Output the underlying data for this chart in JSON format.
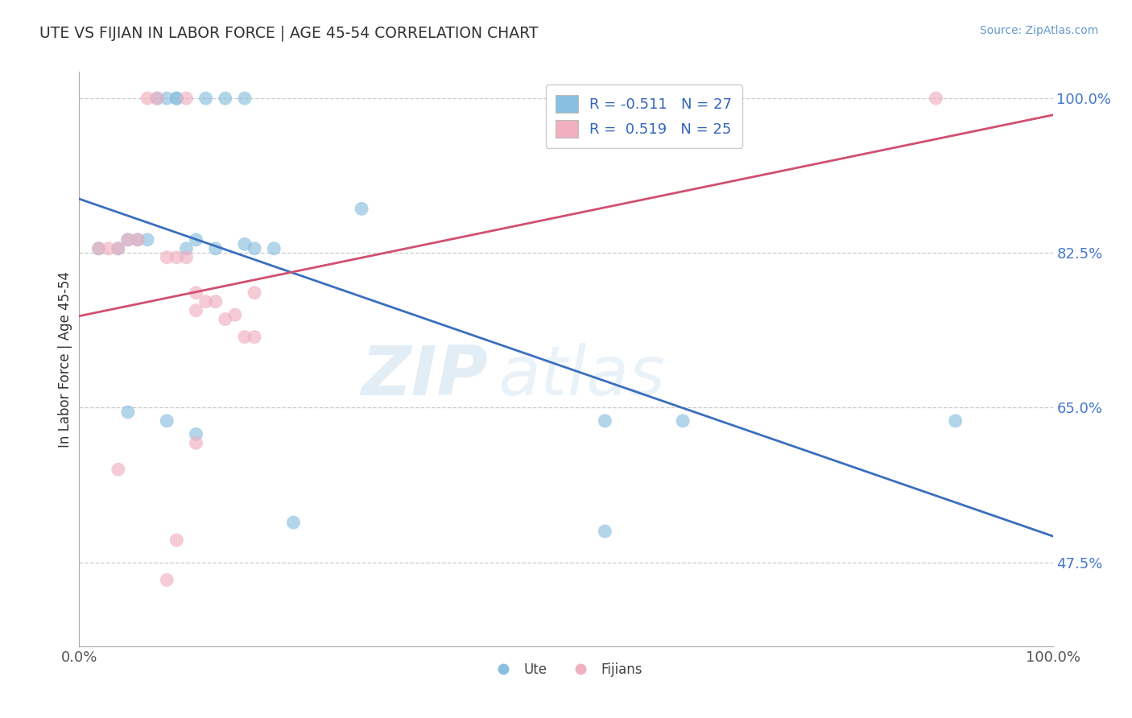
{
  "title": "UTE VS FIJIAN IN LABOR FORCE | AGE 45-54 CORRELATION CHART",
  "source_text": "Source: ZipAtlas.com",
  "ylabel": "In Labor Force | Age 45-54",
  "xlim": [
    0.0,
    1.0
  ],
  "ylim": [
    0.38,
    1.03
  ],
  "x_ticks": [
    0.0,
    1.0
  ],
  "x_tick_labels": [
    "0.0%",
    "100.0%"
  ],
  "y_ticks": [
    0.475,
    0.65,
    0.825,
    1.0
  ],
  "y_tick_labels": [
    "47.5%",
    "65.0%",
    "82.5%",
    "100.0%"
  ],
  "blue_color": "#89bfe0",
  "pink_color": "#f0b0c0",
  "blue_line_color": "#3b6fbe",
  "pink_line_color": "#d05070",
  "legend_blue_label": "R = -0.511   N = 27",
  "legend_pink_label": "R =  0.519   N = 25",
  "ute_label": "Ute",
  "fijian_label": "Fijians",
  "blue_x": [
    0.02,
    0.04,
    0.05,
    0.06,
    0.07,
    0.08,
    0.09,
    0.1,
    0.1,
    0.11,
    0.12,
    0.13,
    0.14,
    0.15,
    0.17,
    0.18,
    0.2,
    0.05,
    0.09,
    0.12,
    0.22,
    0.54,
    0.62,
    0.9,
    0.17,
    0.54,
    0.29
  ],
  "blue_y": [
    0.83,
    0.83,
    0.84,
    0.84,
    0.84,
    1.0,
    1.0,
    1.0,
    1.0,
    0.83,
    0.84,
    1.0,
    0.83,
    1.0,
    1.0,
    0.83,
    0.83,
    0.645,
    0.635,
    0.62,
    0.52,
    0.635,
    0.635,
    0.635,
    0.835,
    0.51,
    0.875
  ],
  "pink_x": [
    0.02,
    0.03,
    0.04,
    0.05,
    0.06,
    0.07,
    0.08,
    0.09,
    0.1,
    0.11,
    0.12,
    0.13,
    0.14,
    0.15,
    0.17,
    0.18,
    0.11,
    0.18,
    0.12,
    0.16,
    0.88,
    0.12,
    0.04,
    0.1,
    0.09
  ],
  "pink_y": [
    0.83,
    0.83,
    0.83,
    0.84,
    0.84,
    1.0,
    1.0,
    0.82,
    0.82,
    0.82,
    0.78,
    0.77,
    0.77,
    0.75,
    0.73,
    0.73,
    1.0,
    0.78,
    0.76,
    0.755,
    1.0,
    0.61,
    0.58,
    0.5,
    0.455
  ],
  "watermark_zip": "ZIP",
  "watermark_atlas": "atlas",
  "background_color": "#ffffff",
  "grid_color": "#cccccc",
  "title_color": "#333333",
  "source_color": "#6699cc",
  "ytick_color": "#4477cc",
  "xtick_color": "#555555",
  "ylabel_color": "#333333"
}
